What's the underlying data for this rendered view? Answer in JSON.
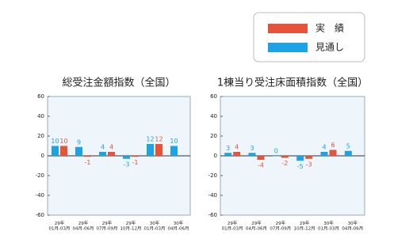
{
  "chart_data": [
    {
      "type": "bar",
      "title": "総受注金額指数（全国）",
      "categories": [
        "29年\n01月-03月",
        "29年\n04月-06月",
        "29年\n07月-09月",
        "29年\n10月-12月",
        "30年\n01月-03月",
        "30年\n04月-06月"
      ],
      "series": [
        {
          "name": "見通し",
          "color": "#1ca3e6",
          "values": [
            10,
            9,
            4,
            -3,
            12,
            10
          ]
        },
        {
          "name": "実　績",
          "color": "#e5533b",
          "values": [
            10,
            -1,
            4,
            -1,
            12,
            null
          ]
        }
      ],
      "ylim": [
        -60,
        60
      ],
      "yticks": [
        -60,
        -40,
        -20,
        0,
        20,
        40,
        60
      ]
    },
    {
      "type": "bar",
      "title": "1棟当り受注床面積指数（全国）",
      "categories": [
        "29年\n01月-03月",
        "29年\n04月-06月",
        "29年\n07月-09月",
        "29年\n10月-12月",
        "30年\n01月-03月",
        "30年\n04月-06月"
      ],
      "series": [
        {
          "name": "見通し",
          "color": "#1ca3e6",
          "values": [
            3,
            3,
            0,
            -5,
            4,
            5
          ]
        },
        {
          "name": "実　績",
          "color": "#e5533b",
          "values": [
            4,
            -4,
            -2,
            -3,
            6,
            null
          ]
        }
      ],
      "ylim": [
        -60,
        60
      ],
      "yticks": [
        -60,
        -40,
        -20,
        0,
        20,
        40,
        60
      ]
    }
  ]
}
